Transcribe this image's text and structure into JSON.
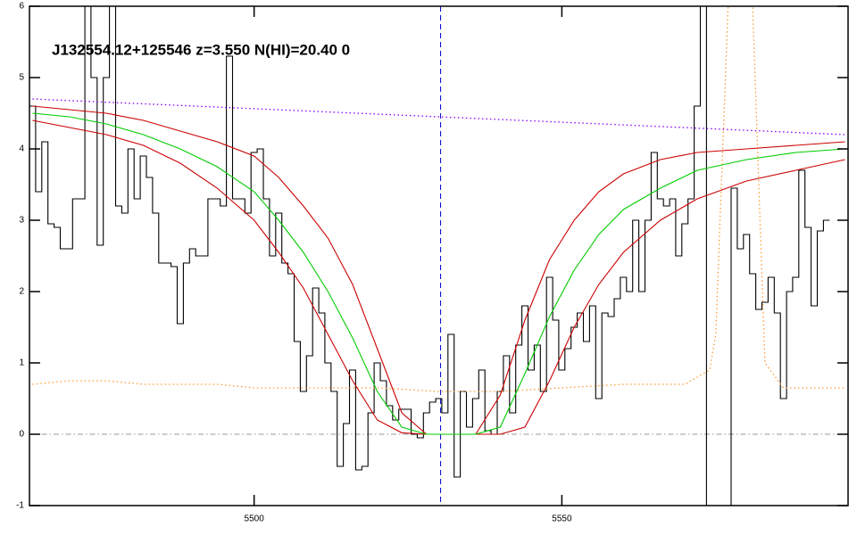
{
  "chart_data": {
    "type": "line",
    "title": "J132554.12+125546 z=3.550 N(HI)=20.40 0",
    "xlim": [
      5463.5,
      5596.5
    ],
    "ylim": [
      -1,
      6
    ],
    "xticks": [
      5500,
      5550
    ],
    "yticks": [
      -1,
      0,
      1,
      2,
      3,
      4,
      5,
      6
    ],
    "vline": {
      "value": 5530.3,
      "color": "#0000cc",
      "linestyle": "dashed"
    },
    "hline": {
      "value": 0,
      "color": "#999999",
      "linestyle": "dashdot"
    },
    "series": [
      {
        "color": "#000000",
        "drawstyle": "steps",
        "linestyle": "solid",
        "x": [
          5464,
          5465,
          5466,
          5467,
          5468,
          5469,
          5470,
          5471,
          5472,
          5473,
          5474,
          5475,
          5476,
          5477,
          5478,
          5479,
          5480,
          5481,
          5482,
          5483,
          5484,
          5485,
          5486,
          5487,
          5488,
          5489,
          5490,
          5491,
          5492,
          5493,
          5494,
          5495,
          5496,
          5497,
          5498,
          5499,
          5500,
          5501,
          5502,
          5503,
          5504,
          5505,
          5506,
          5507,
          5508,
          5509,
          5510,
          5511,
          5512,
          5513,
          5514,
          5515,
          5516,
          5517,
          5518,
          5519,
          5520,
          5521,
          5522,
          5523,
          5524,
          5525,
          5526,
          5527,
          5528,
          5529,
          5530,
          5531,
          5532,
          5533,
          5534,
          5535,
          5536,
          5537,
          5538,
          5539,
          5540,
          5541,
          5542,
          5543,
          5544,
          5545,
          5546,
          5547,
          5548,
          5549,
          5550,
          5551,
          5552,
          5553,
          5554,
          5555,
          5556,
          5557,
          5558,
          5559,
          5560,
          5561,
          5562,
          5563,
          5564,
          5565,
          5566,
          5567,
          5568,
          5569,
          5570,
          5571,
          5572,
          5573,
          5574,
          5575,
          5576,
          5577,
          5578,
          5579,
          5580,
          5581,
          5582,
          5583,
          5584,
          5585,
          5586,
          5587,
          5588,
          5589,
          5590,
          5591,
          5592,
          5593
        ],
        "values": [
          4.6,
          3.4,
          4.1,
          2.95,
          2.9,
          2.6,
          2.6,
          3.3,
          3.3,
          6,
          5.0,
          2.65,
          5.0,
          6,
          3.2,
          3.1,
          4.0,
          3.3,
          3.9,
          3.6,
          3.1,
          2.4,
          2.4,
          2.35,
          1.55,
          2.4,
          2.6,
          2.5,
          2.5,
          3.3,
          3.3,
          3.2,
          5.3,
          3.3,
          3.3,
          3.1,
          3.95,
          4.0,
          3.3,
          2.5,
          3.1,
          2.4,
          2.25,
          1.3,
          0.6,
          1.1,
          2.05,
          1.7,
          1.0,
          0.6,
          -0.45,
          0.15,
          0.9,
          -0.5,
          -0.45,
          0.3,
          1.0,
          0.75,
          0.4,
          0.2,
          0.35,
          0.35,
          0.0,
          -0.05,
          0.3,
          0.45,
          0.5,
          0.3,
          1.4,
          -0.6,
          0.6,
          0.1,
          0.5,
          0.9,
          0.05,
          0.0,
          0.6,
          1.1,
          0.3,
          1.25,
          1.8,
          0.9,
          1.25,
          0.6,
          2.2,
          1.6,
          0.9,
          1.2,
          1.5,
          1.7,
          1.3,
          1.8,
          0.5,
          1.7,
          1.65,
          1.9,
          2.2,
          2.0,
          3.0,
          2.0,
          3.0,
          3.95,
          3.3,
          3.2,
          3.3,
          2.5,
          2.95,
          3.3,
          4.6,
          6,
          -1,
          -1,
          -1,
          -1,
          3.45,
          2.6,
          2.8,
          2.25,
          1.75,
          1.85,
          2.2,
          1.7,
          0.5,
          2.0,
          2.2,
          3.7,
          2.9,
          1.8,
          2.85,
          3.0
        ]
      },
      {
        "color": "#ff9933",
        "drawstyle": "line",
        "linestyle": "dotted",
        "x": [
          5464,
          5470,
          5476,
          5482,
          5488,
          5494,
          5500,
          5510,
          5520,
          5530,
          5540,
          5550,
          5560,
          5570,
          5574,
          5575,
          5577,
          5579,
          5581,
          5583,
          5586,
          5590,
          5596
        ],
        "values": [
          0.7,
          0.75,
          0.75,
          0.7,
          0.7,
          0.7,
          0.65,
          0.65,
          0.65,
          0.6,
          0.6,
          0.65,
          0.7,
          0.7,
          0.9,
          1.4,
          6,
          6,
          6,
          1.0,
          0.65,
          0.65,
          0.65
        ]
      },
      {
        "color": "#8800ff",
        "drawstyle": "line",
        "linestyle": "dotted",
        "x": [
          5464,
          5596
        ],
        "values": [
          4.7,
          4.2
        ]
      },
      {
        "color": "#cc0000",
        "drawstyle": "line",
        "linestyle": "solid",
        "x": [
          5464,
          5470,
          5476,
          5482,
          5488,
          5494,
          5500,
          5504,
          5508,
          5512,
          5516,
          5520,
          5524,
          5528,
          5532,
          5536,
          5540,
          5544,
          5548,
          5552,
          5556,
          5560,
          5566,
          5572,
          5580,
          5588,
          5596
        ],
        "values": [
          4.6,
          4.55,
          4.5,
          4.4,
          4.25,
          4.1,
          3.9,
          3.6,
          3.2,
          2.75,
          2.1,
          1.2,
          0.3,
          0.0,
          0.0,
          0.0,
          0.55,
          1.6,
          2.45,
          3.0,
          3.4,
          3.65,
          3.85,
          3.95,
          4.0,
          4.05,
          4.1
        ]
      },
      {
        "color": "#cc0000",
        "drawstyle": "line",
        "linestyle": "solid",
        "x": [
          5464,
          5470,
          5476,
          5482,
          5488,
          5494,
          5500,
          5504,
          5508,
          5512,
          5516,
          5520,
          5524,
          5528,
          5532,
          5536,
          5540,
          5544,
          5548,
          5552,
          5556,
          5560,
          5566,
          5572,
          5580,
          5588,
          5596
        ],
        "values": [
          4.4,
          4.3,
          4.2,
          4.05,
          3.8,
          3.45,
          3.0,
          2.55,
          2.05,
          1.4,
          0.75,
          0.2,
          0.02,
          0,
          0,
          0,
          0,
          0.1,
          0.75,
          1.5,
          2.1,
          2.55,
          3.0,
          3.3,
          3.55,
          3.7,
          3.85
        ]
      },
      {
        "color": "#00cc00",
        "drawstyle": "line",
        "linestyle": "solid",
        "x": [
          5464,
          5470,
          5476,
          5482,
          5488,
          5494,
          5500,
          5504,
          5508,
          5512,
          5516,
          5520,
          5524,
          5528,
          5532,
          5536,
          5540,
          5544,
          5548,
          5552,
          5556,
          5560,
          5566,
          5572,
          5580,
          5588,
          5596
        ],
        "values": [
          4.5,
          4.45,
          4.35,
          4.2,
          4.0,
          3.75,
          3.4,
          3.0,
          2.55,
          2.0,
          1.35,
          0.6,
          0.1,
          0.0,
          0,
          0,
          0.1,
          0.85,
          1.65,
          2.3,
          2.8,
          3.15,
          3.45,
          3.7,
          3.85,
          3.95,
          4.0
        ]
      }
    ]
  }
}
